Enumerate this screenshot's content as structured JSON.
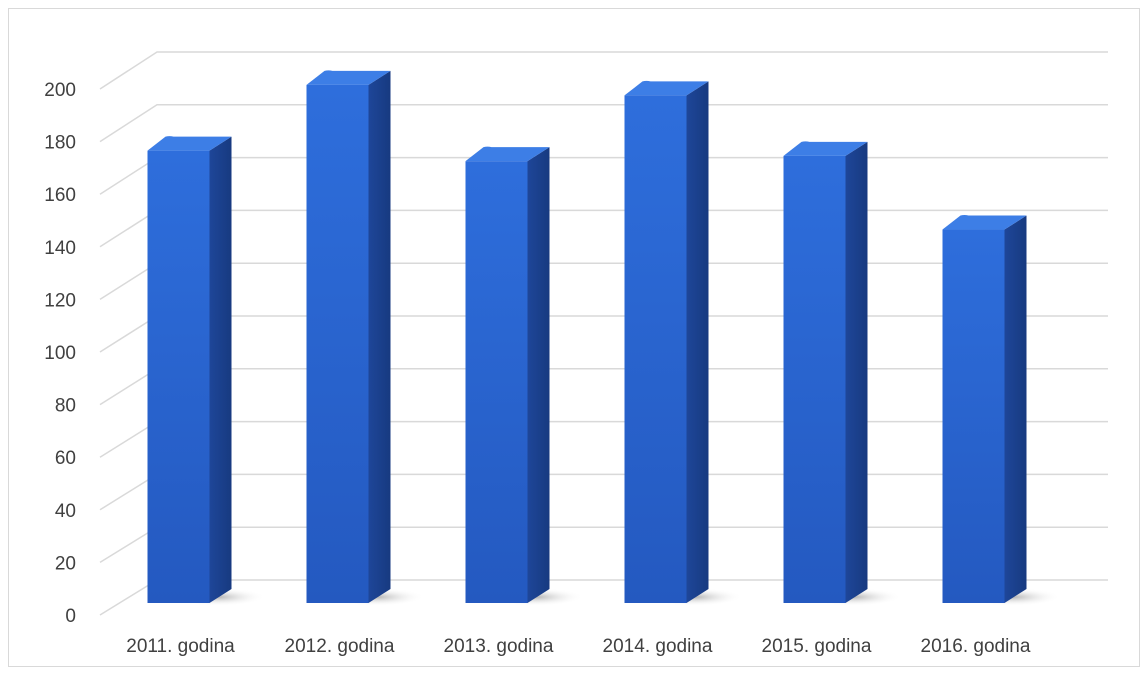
{
  "chart_data": {
    "type": "bar",
    "title": "",
    "xlabel": "",
    "ylabel": "",
    "categories": [
      "2011. godina",
      "2012. godina",
      "2013. godina",
      "2014. godina",
      "2015. godina",
      "2016. godina"
    ],
    "values": [
      172,
      197,
      168,
      193,
      170,
      142
    ],
    "ylim": [
      0,
      200
    ],
    "y_ticks": [
      "0",
      "20",
      "40",
      "60",
      "80",
      "100",
      "120",
      "140",
      "160",
      "180",
      "200"
    ],
    "grid": true,
    "style": "3d-column",
    "legend": "none"
  },
  "colors": {
    "bar_front_top": "#2e6edc",
    "bar_front_bottom": "#2459c0",
    "bar_side": "#1b3f8f",
    "bar_top": "#3d7ee6",
    "gridline": "#d9d9d9",
    "text": "#404040",
    "shadow": "#bfbfbf"
  }
}
